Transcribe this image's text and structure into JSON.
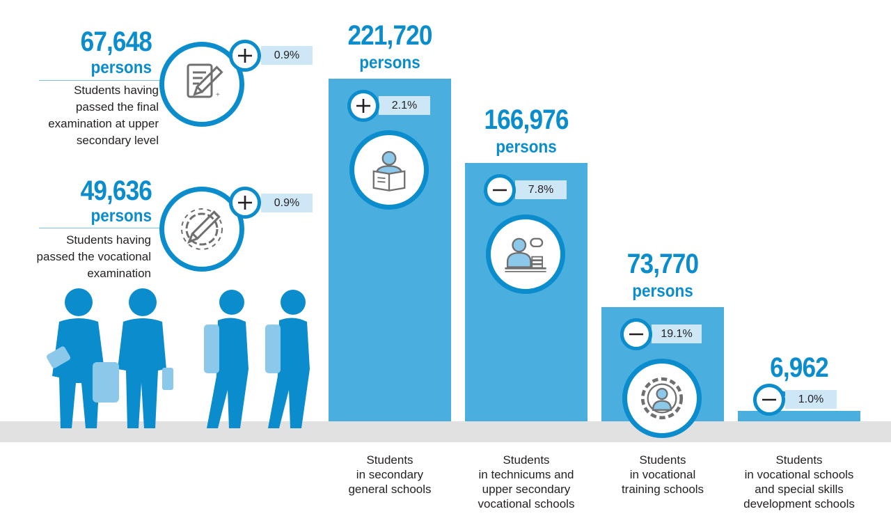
{
  "chart_data": {
    "type": "bar",
    "categories": [
      "Students in secondary general schools",
      "Students in technicums and upper secondary vocational schools",
      "Students in vocational training schools",
      "Students in vocational schools and special skills development schools"
    ],
    "category_lines": [
      [
        "Students",
        "in secondary",
        "general schools"
      ],
      [
        "Students",
        "in technicums and",
        "upper secondary",
        "vocational schools"
      ],
      [
        "Students",
        "in vocational",
        "training schools"
      ],
      [
        "Students",
        "in vocational schools",
        "and special skills",
        "development schools"
      ]
    ],
    "values": [
      221720,
      166976,
      73770,
      6962
    ],
    "value_labels": [
      "221,720",
      "166,976",
      "73,770",
      "6,962"
    ],
    "unit": "persons",
    "change_signs": [
      "+",
      "-",
      "-",
      "-"
    ],
    "change_labels": [
      "2.1%",
      "7.8%",
      "19.1%",
      "1.0%"
    ],
    "icons": [
      "reading-student-icon",
      "student-at-desk-icon",
      "gear-person-icon",
      null
    ],
    "ylim": [
      0,
      221720
    ],
    "grid": false,
    "color": "#4aaede"
  },
  "stats": [
    {
      "value_label": "67,648",
      "unit": "persons",
      "lines": [
        "Students having",
        "passed the final",
        "examination at upper",
        "secondary level"
      ],
      "change_sign": "+",
      "change_label": "0.9%",
      "icon": "exam-paper-pencil-icon"
    },
    {
      "value_label": "49,636",
      "unit": "persons",
      "lines": [
        "Students having",
        "passed the vocational",
        "examination"
      ],
      "change_sign": "+",
      "change_label": "0.9%",
      "icon": "gear-pencil-icon"
    }
  ],
  "colors": {
    "accent": "#0a8ccd",
    "bar": "#4aaede",
    "ground": "#e1e1e1",
    "pct_box": "#cde7f6",
    "figure_light": "#8cc8ea"
  },
  "decoration": {
    "students_illustration": "students-group-icon"
  }
}
